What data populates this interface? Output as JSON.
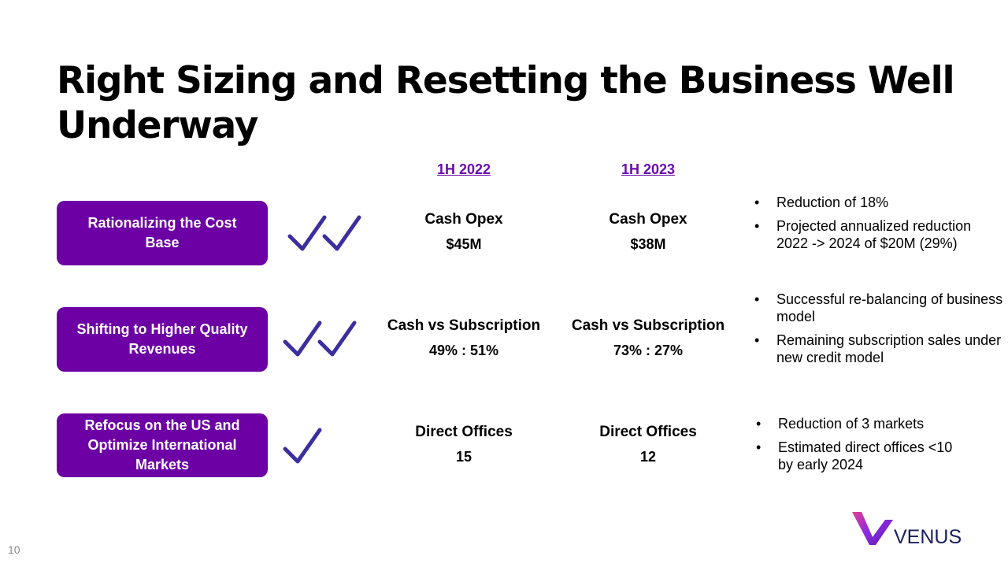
{
  "title": "Right Sizing and Resetting the Business Well Underway",
  "columns": {
    "col1": "1H 2022",
    "col2": "1H 2023"
  },
  "rows": [
    {
      "label": "Rationalizing the Cost Base",
      "checks": 2,
      "metric_label": "Cash Opex",
      "value_2022": "$45M",
      "value_2023": "$38M",
      "notes": [
        "Reduction of 18%",
        "Projected annualized reduction 2022 -> 2024 of $20M (29%)"
      ]
    },
    {
      "label": "Shifting to Higher Quality Revenues",
      "checks": 2,
      "metric_label": "Cash vs Subscription",
      "value_2022": "49% : 51%",
      "value_2023": "73% : 27%",
      "notes": [
        "Successful re-balancing of business model",
        "Remaining subscription sales under new credit model"
      ]
    },
    {
      "label": "Refocus on the US and Optimize International Markets",
      "checks": 1,
      "metric_label": "Direct Offices",
      "value_2022": "15",
      "value_2023": "12",
      "notes": [
        "Reduction of 3 markets",
        "Estimated direct offices <10 by early 2024"
      ]
    }
  ],
  "page_number": "10",
  "logo": {
    "text": "VENUS"
  },
  "colors": {
    "accent": "#6c00a4",
    "check": "#3b2f9e",
    "header": "#6a0dad"
  }
}
